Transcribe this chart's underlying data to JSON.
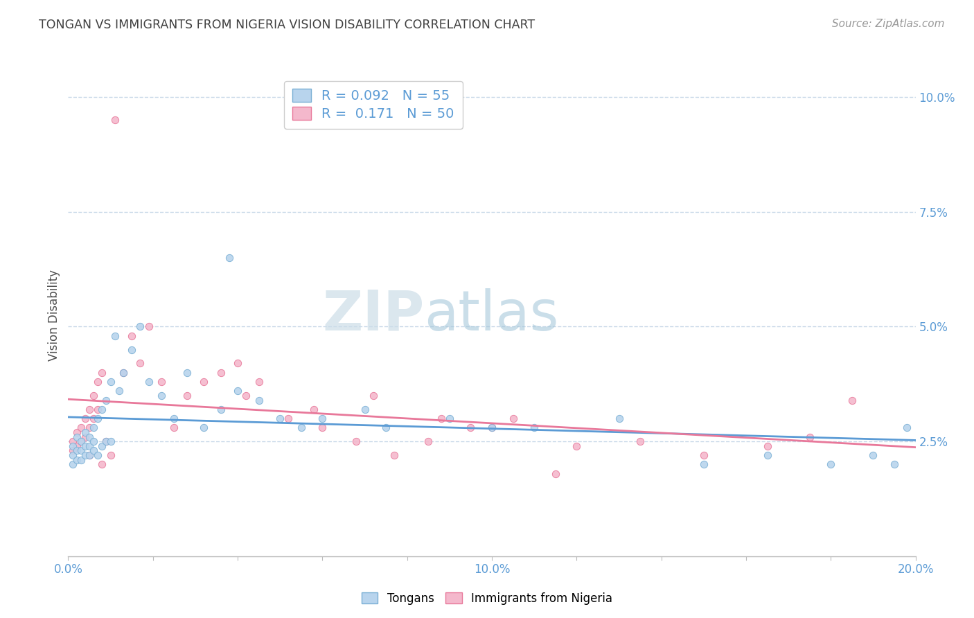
{
  "title": "TONGAN VS IMMIGRANTS FROM NIGERIA VISION DISABILITY CORRELATION CHART",
  "source": "Source: ZipAtlas.com",
  "ylabel": "Vision Disability",
  "xlim": [
    0.0,
    0.2
  ],
  "ylim": [
    0.0,
    0.105
  ],
  "yticks_right": [
    0.025,
    0.05,
    0.075,
    0.1
  ],
  "ytick_labels_right": [
    "2.5%",
    "5.0%",
    "7.5%",
    "10.0%"
  ],
  "series1_name": "Tongans",
  "series1_color": "#b8d4ed",
  "series1_edge_color": "#7aafd4",
  "series1_line_color": "#5b9bd5",
  "series1_R": 0.092,
  "series1_N": 55,
  "series2_name": "Immigrants from Nigeria",
  "series2_color": "#f4b8cc",
  "series2_edge_color": "#e8789a",
  "series2_line_color": "#e8789a",
  "series2_R": 0.171,
  "series2_N": 50,
  "watermark_zip": "ZIP",
  "watermark_atlas": "atlas",
  "background_color": "#ffffff",
  "grid_color": "#c8d8e8",
  "title_color": "#404040",
  "axis_color": "#5b9bd5",
  "tongans_x": [
    0.001,
    0.001,
    0.001,
    0.002,
    0.002,
    0.002,
    0.003,
    0.003,
    0.003,
    0.004,
    0.004,
    0.004,
    0.005,
    0.005,
    0.005,
    0.006,
    0.006,
    0.006,
    0.007,
    0.007,
    0.008,
    0.008,
    0.009,
    0.009,
    0.01,
    0.01,
    0.011,
    0.012,
    0.013,
    0.015,
    0.017,
    0.019,
    0.022,
    0.025,
    0.028,
    0.032,
    0.036,
    0.04,
    0.045,
    0.05,
    0.038,
    0.055,
    0.06,
    0.07,
    0.075,
    0.09,
    0.1,
    0.11,
    0.13,
    0.15,
    0.165,
    0.18,
    0.19,
    0.195,
    0.198
  ],
  "tongans_y": [
    0.024,
    0.022,
    0.02,
    0.026,
    0.023,
    0.021,
    0.025,
    0.023,
    0.021,
    0.027,
    0.024,
    0.022,
    0.026,
    0.024,
    0.022,
    0.028,
    0.025,
    0.023,
    0.03,
    0.022,
    0.032,
    0.024,
    0.034,
    0.025,
    0.038,
    0.025,
    0.048,
    0.036,
    0.04,
    0.045,
    0.05,
    0.038,
    0.035,
    0.03,
    0.04,
    0.028,
    0.032,
    0.036,
    0.034,
    0.03,
    0.065,
    0.028,
    0.03,
    0.032,
    0.028,
    0.03,
    0.028,
    0.028,
    0.03,
    0.02,
    0.022,
    0.02,
    0.022,
    0.02,
    0.028
  ],
  "nigeria_x": [
    0.001,
    0.001,
    0.002,
    0.002,
    0.003,
    0.003,
    0.004,
    0.004,
    0.005,
    0.005,
    0.006,
    0.006,
    0.007,
    0.007,
    0.008,
    0.009,
    0.01,
    0.011,
    0.013,
    0.015,
    0.017,
    0.019,
    0.022,
    0.025,
    0.028,
    0.032,
    0.036,
    0.04,
    0.045,
    0.052,
    0.06,
    0.068,
    0.077,
    0.085,
    0.095,
    0.105,
    0.12,
    0.135,
    0.15,
    0.165,
    0.175,
    0.185,
    0.042,
    0.058,
    0.072,
    0.088,
    0.1,
    0.115,
    0.005,
    0.008
  ],
  "nigeria_y": [
    0.025,
    0.023,
    0.027,
    0.024,
    0.028,
    0.025,
    0.03,
    0.026,
    0.032,
    0.028,
    0.035,
    0.03,
    0.038,
    0.032,
    0.04,
    0.025,
    0.022,
    0.095,
    0.04,
    0.048,
    0.042,
    0.05,
    0.038,
    0.028,
    0.035,
    0.038,
    0.04,
    0.042,
    0.038,
    0.03,
    0.028,
    0.025,
    0.022,
    0.025,
    0.028,
    0.03,
    0.024,
    0.025,
    0.022,
    0.024,
    0.026,
    0.034,
    0.035,
    0.032,
    0.035,
    0.03,
    0.028,
    0.018,
    0.022,
    0.02
  ]
}
